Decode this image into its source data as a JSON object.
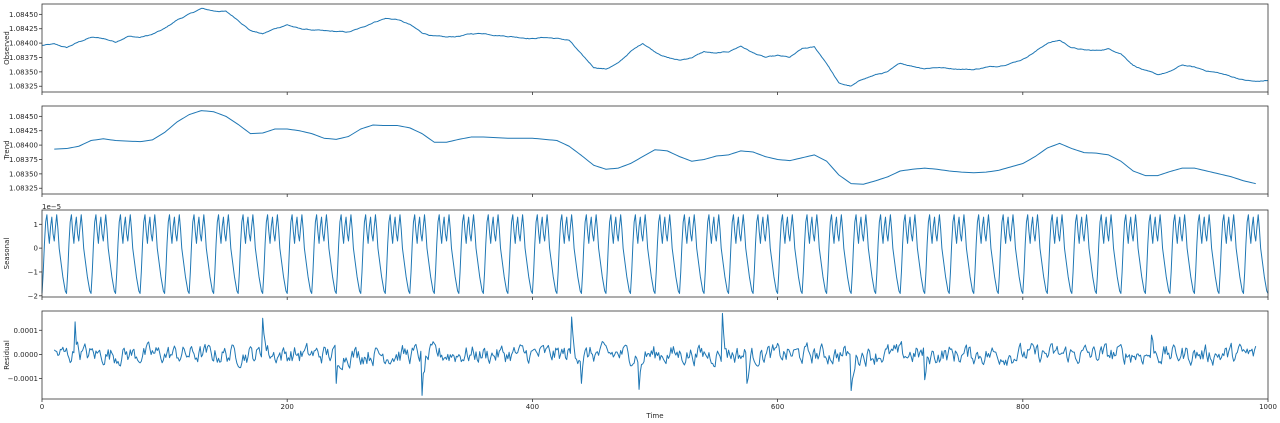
{
  "figure": {
    "xlabel": "Time",
    "line_color": "#1f77b4",
    "x_range": [
      0,
      1000
    ],
    "x_ticks": [
      0,
      200,
      400,
      600,
      800,
      1000
    ]
  },
  "chart_data": [
    {
      "type": "line",
      "ylabel": "Observed",
      "ylim": [
        1.08315,
        1.08468
      ],
      "y_ticks": [
        1.08325,
        1.0835,
        1.08375,
        1.084,
        1.08425,
        1.0845
      ],
      "y_tick_labels": [
        "1.08325",
        "1.08350",
        "1.08375",
        "1.08400",
        "1.08425",
        "1.08450"
      ],
      "x_start": 0,
      "x_end": 1000,
      "points": [
        [
          0,
          1.08396
        ],
        [
          10,
          1.08398
        ],
        [
          20,
          1.08392
        ],
        [
          30,
          1.08402
        ],
        [
          40,
          1.0841
        ],
        [
          50,
          1.08408
        ],
        [
          60,
          1.08402
        ],
        [
          70,
          1.08412
        ],
        [
          80,
          1.0841
        ],
        [
          90,
          1.08415
        ],
        [
          100,
          1.08425
        ],
        [
          110,
          1.0844
        ],
        [
          120,
          1.0845
        ],
        [
          130,
          1.0846
        ],
        [
          140,
          1.08456
        ],
        [
          150,
          1.08455
        ],
        [
          160,
          1.0844
        ],
        [
          170,
          1.08422
        ],
        [
          180,
          1.08416
        ],
        [
          190,
          1.08425
        ],
        [
          200,
          1.08432
        ],
        [
          210,
          1.08425
        ],
        [
          220,
          1.08423
        ],
        [
          230,
          1.08421
        ],
        [
          240,
          1.0842
        ],
        [
          250,
          1.08419
        ],
        [
          260,
          1.08426
        ],
        [
          270,
          1.08436
        ],
        [
          280,
          1.08443
        ],
        [
          290,
          1.08441
        ],
        [
          300,
          1.08432
        ],
        [
          310,
          1.08418
        ],
        [
          320,
          1.08412
        ],
        [
          330,
          1.0841
        ],
        [
          340,
          1.08412
        ],
        [
          350,
          1.08416
        ],
        [
          360,
          1.08417
        ],
        [
          370,
          1.08414
        ],
        [
          380,
          1.08412
        ],
        [
          390,
          1.0841
        ],
        [
          400,
          1.08408
        ],
        [
          410,
          1.0841
        ],
        [
          420,
          1.08408
        ],
        [
          430,
          1.08405
        ],
        [
          440,
          1.0838
        ],
        [
          450,
          1.08358
        ],
        [
          460,
          1.08355
        ],
        [
          470,
          1.08365
        ],
        [
          480,
          1.08385
        ],
        [
          490,
          1.084
        ],
        [
          500,
          1.08385
        ],
        [
          510,
          1.08375
        ],
        [
          520,
          1.0837
        ],
        [
          530,
          1.08375
        ],
        [
          540,
          1.08385
        ],
        [
          550,
          1.08382
        ],
        [
          560,
          1.08385
        ],
        [
          570,
          1.08395
        ],
        [
          580,
          1.08383
        ],
        [
          590,
          1.08375
        ],
        [
          600,
          1.08378
        ],
        [
          610,
          1.08375
        ],
        [
          620,
          1.0839
        ],
        [
          630,
          1.08393
        ],
        [
          640,
          1.08365
        ],
        [
          650,
          1.0833
        ],
        [
          660,
          1.08325
        ],
        [
          670,
          1.08338
        ],
        [
          680,
          1.08345
        ],
        [
          690,
          1.0835
        ],
        [
          700,
          1.08365
        ],
        [
          710,
          1.0836
        ],
        [
          720,
          1.08356
        ],
        [
          730,
          1.08358
        ],
        [
          740,
          1.08356
        ],
        [
          750,
          1.08355
        ],
        [
          760,
          1.08354
        ],
        [
          770,
          1.08358
        ],
        [
          780,
          1.0836
        ],
        [
          790,
          1.08365
        ],
        [
          800,
          1.08372
        ],
        [
          810,
          1.08385
        ],
        [
          820,
          1.084
        ],
        [
          830,
          1.08405
        ],
        [
          840,
          1.08392
        ],
        [
          850,
          1.08388
        ],
        [
          860,
          1.08387
        ],
        [
          870,
          1.0839
        ],
        [
          880,
          1.08382
        ],
        [
          890,
          1.08362
        ],
        [
          900,
          1.08352
        ],
        [
          910,
          1.08345
        ],
        [
          920,
          1.0835
        ],
        [
          930,
          1.08362
        ],
        [
          940,
          1.08358
        ],
        [
          950,
          1.08352
        ],
        [
          960,
          1.08348
        ],
        [
          970,
          1.08342
        ],
        [
          980,
          1.08336
        ],
        [
          990,
          1.08333
        ],
        [
          1000,
          1.08335
        ]
      ],
      "noise_amplitude": 1.2e-05
    },
    {
      "type": "line",
      "ylabel": "Trend",
      "ylim": [
        1.08315,
        1.08468
      ],
      "y_ticks": [
        1.08325,
        1.0835,
        1.08375,
        1.084,
        1.08425,
        1.0845
      ],
      "y_tick_labels": [
        "1.08325",
        "1.08350",
        "1.08375",
        "1.08400",
        "1.08425",
        "1.08450"
      ],
      "x_start": 10,
      "x_end": 990,
      "points": [
        [
          10,
          1.08393
        ],
        [
          20,
          1.08394
        ],
        [
          30,
          1.08398
        ],
        [
          40,
          1.08408
        ],
        [
          50,
          1.08411
        ],
        [
          60,
          1.08408
        ],
        [
          70,
          1.08407
        ],
        [
          80,
          1.08406
        ],
        [
          90,
          1.08409
        ],
        [
          100,
          1.08422
        ],
        [
          110,
          1.0844
        ],
        [
          120,
          1.08453
        ],
        [
          130,
          1.0846
        ],
        [
          140,
          1.08458
        ],
        [
          150,
          1.0845
        ],
        [
          160,
          1.08436
        ],
        [
          170,
          1.0842
        ],
        [
          180,
          1.08421
        ],
        [
          190,
          1.08428
        ],
        [
          200,
          1.08428
        ],
        [
          210,
          1.08425
        ],
        [
          220,
          1.0842
        ],
        [
          230,
          1.08412
        ],
        [
          240,
          1.0841
        ],
        [
          250,
          1.08415
        ],
        [
          260,
          1.08428
        ],
        [
          270,
          1.08435
        ],
        [
          280,
          1.08434
        ],
        [
          290,
          1.08434
        ],
        [
          300,
          1.0843
        ],
        [
          310,
          1.0842
        ],
        [
          320,
          1.08405
        ],
        [
          330,
          1.08405
        ],
        [
          340,
          1.0841
        ],
        [
          350,
          1.08414
        ],
        [
          360,
          1.08414
        ],
        [
          370,
          1.08413
        ],
        [
          380,
          1.08412
        ],
        [
          390,
          1.08412
        ],
        [
          400,
          1.08412
        ],
        [
          410,
          1.0841
        ],
        [
          420,
          1.08408
        ],
        [
          430,
          1.08398
        ],
        [
          440,
          1.08382
        ],
        [
          450,
          1.08365
        ],
        [
          460,
          1.08358
        ],
        [
          470,
          1.0836
        ],
        [
          480,
          1.08368
        ],
        [
          490,
          1.0838
        ],
        [
          500,
          1.08392
        ],
        [
          510,
          1.0839
        ],
        [
          520,
          1.0838
        ],
        [
          530,
          1.08372
        ],
        [
          540,
          1.08375
        ],
        [
          550,
          1.08381
        ],
        [
          560,
          1.08383
        ],
        [
          570,
          1.0839
        ],
        [
          580,
          1.08388
        ],
        [
          590,
          1.0838
        ],
        [
          600,
          1.08375
        ],
        [
          610,
          1.08373
        ],
        [
          620,
          1.08378
        ],
        [
          630,
          1.08383
        ],
        [
          640,
          1.08372
        ],
        [
          650,
          1.08348
        ],
        [
          660,
          1.08333
        ],
        [
          670,
          1.08332
        ],
        [
          680,
          1.08338
        ],
        [
          690,
          1.08345
        ],
        [
          700,
          1.08355
        ],
        [
          710,
          1.08358
        ],
        [
          720,
          1.0836
        ],
        [
          730,
          1.08358
        ],
        [
          740,
          1.08355
        ],
        [
          750,
          1.08353
        ],
        [
          760,
          1.08352
        ],
        [
          770,
          1.08353
        ],
        [
          780,
          1.08356
        ],
        [
          790,
          1.08362
        ],
        [
          800,
          1.08368
        ],
        [
          810,
          1.0838
        ],
        [
          820,
          1.08395
        ],
        [
          830,
          1.08403
        ],
        [
          840,
          1.08394
        ],
        [
          850,
          1.08387
        ],
        [
          860,
          1.08386
        ],
        [
          870,
          1.08383
        ],
        [
          880,
          1.08372
        ],
        [
          890,
          1.08355
        ],
        [
          900,
          1.08347
        ],
        [
          910,
          1.08347
        ],
        [
          920,
          1.08354
        ],
        [
          930,
          1.0836
        ],
        [
          940,
          1.0836
        ],
        [
          950,
          1.08355
        ],
        [
          960,
          1.0835
        ],
        [
          970,
          1.08345
        ],
        [
          980,
          1.08338
        ],
        [
          990,
          1.08333
        ]
      ],
      "noise_amplitude": 0
    },
    {
      "type": "line",
      "ylabel": "Seasonal",
      "ylim": [
        -2.05,
        1.6
      ],
      "y_ticks": [
        -2,
        -1,
        0,
        1
      ],
      "y_tick_labels": [
        "−2",
        "−1",
        "0",
        "1"
      ],
      "offset_text": "1e−5",
      "x_start": 0,
      "x_end": 1000,
      "period": 20,
      "cycle": [
        -1.9,
        -1.0,
        0.2,
        1.1,
        1.4,
        0.7,
        0.2,
        0.9,
        1.3,
        0.6,
        0.3,
        0.9,
        1.4,
        0.8,
        0.0,
        -0.4,
        -0.8,
        -1.2,
        -1.5,
        -1.8
      ]
    },
    {
      "type": "line",
      "ylabel": "Residual",
      "ylim": [
        -0.000185,
        0.00018
      ],
      "y_ticks": [
        -0.0001,
        0.0,
        0.0001
      ],
      "y_tick_labels": [
        "−0.0001",
        "0.0000",
        "0.0001"
      ],
      "x_start": 10,
      "x_end": 990,
      "amplitude": 3e-05,
      "spikes": [
        [
          27,
          0.000135
        ],
        [
          180,
          0.00015
        ],
        [
          240,
          -0.00012
        ],
        [
          310,
          -0.00017
        ],
        [
          432,
          0.000155
        ],
        [
          440,
          -0.00012
        ],
        [
          487,
          -0.000145
        ],
        [
          555,
          0.00017
        ],
        [
          575,
          -0.00012
        ],
        [
          660,
          -0.00015
        ],
        [
          720,
          -0.000105
        ],
        [
          905,
          8e-05
        ]
      ]
    }
  ]
}
